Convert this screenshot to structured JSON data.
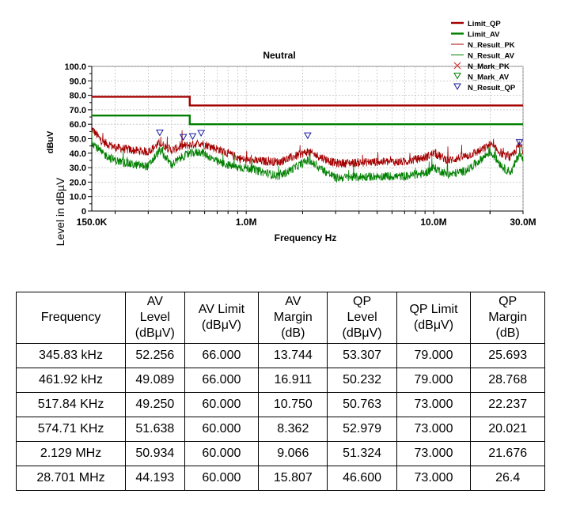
{
  "chart_data": {
    "type": "line",
    "title": "Neutral",
    "xlabel": "Frequency Hz",
    "ylabel": "Level in dBµV",
    "yunit": "dBuV",
    "x_scale": "log",
    "xlim": [
      150000,
      30000000
    ],
    "ylim": [
      0,
      100
    ],
    "x_ticks": [
      {
        "value": 150000,
        "label": "150.0K"
      },
      {
        "value": 1000000,
        "label": "1.0M"
      },
      {
        "value": 10000000,
        "label": "10.0M"
      },
      {
        "value": 30000000,
        "label": "30.0M"
      }
    ],
    "y_ticks": [
      "0",
      "10.0",
      "20.0",
      "30.0",
      "40.0",
      "50.0",
      "60.0",
      "70.0",
      "80.0",
      "90.0",
      "100.0"
    ],
    "grid": true,
    "legend_position": "top-right",
    "legend": [
      {
        "label": "Limit_QP",
        "color": "#a50000",
        "kind": "thick-line"
      },
      {
        "label": "Limit_AV",
        "color": "#008000",
        "kind": "thick-line"
      },
      {
        "label": "N_Result_PK",
        "color": "#a50000",
        "kind": "thin-line"
      },
      {
        "label": "N_Result_AV",
        "color": "#008000",
        "kind": "thin-line"
      },
      {
        "label": "N_Mark_PK",
        "color": "#d23232",
        "kind": "x-marker"
      },
      {
        "label": "N_Mark_AV",
        "color": "#008000",
        "kind": "down-triangle"
      },
      {
        "label": "N_Result_QP",
        "color": "#1a1aa0",
        "kind": "down-triangle"
      }
    ],
    "series": [
      {
        "name": "Limit_QP",
        "color": "#a50000",
        "x": [
          150000,
          500000,
          500000,
          30000000
        ],
        "y": [
          79,
          79,
          73,
          73
        ]
      },
      {
        "name": "Limit_AV",
        "color": "#008000",
        "x": [
          150000,
          500000,
          500000,
          30000000
        ],
        "y": [
          66,
          66,
          60,
          60
        ]
      },
      {
        "name": "N_Result_PK",
        "color": "#a50000",
        "x": [
          150000,
          170000,
          200000,
          250000,
          300000,
          345830,
          400000,
          461920,
          517840,
          574710,
          700000,
          900000,
          1000000,
          1500000,
          2129000,
          3000000,
          5000000,
          7000000,
          9000000,
          10000000,
          12000000,
          15000000,
          18000000,
          20000000,
          24000000,
          26000000,
          28701000,
          30000000
        ],
        "y": [
          57,
          48,
          44,
          42,
          41,
          47,
          42,
          45,
          46,
          47,
          43,
          37,
          35,
          34,
          41,
          33,
          34,
          34,
          37,
          40,
          35,
          38,
          42,
          46,
          38,
          37,
          46,
          42
        ]
      },
      {
        "name": "N_Result_AV",
        "color": "#008000",
        "x": [
          150000,
          170000,
          200000,
          250000,
          300000,
          345830,
          400000,
          461920,
          517840,
          574710,
          700000,
          900000,
          1000000,
          1500000,
          2129000,
          3000000,
          5000000,
          7000000,
          9000000,
          10000000,
          12000000,
          15000000,
          18000000,
          20000000,
          24000000,
          26000000,
          28701000,
          30000000
        ],
        "y": [
          48,
          40,
          35,
          32,
          31,
          42,
          32,
          38,
          40,
          41,
          34,
          30,
          30,
          24,
          35,
          23,
          24,
          24,
          26,
          30,
          25,
          28,
          36,
          41,
          29,
          27,
          40,
          35
        ]
      },
      {
        "name": "N_Result_QP",
        "color": "#1a1aa0",
        "marker": "down-triangle",
        "x": [
          345830,
          461920,
          517840,
          574710,
          2129000,
          28701000
        ],
        "y": [
          53.307,
          50.232,
          50.763,
          52.979,
          51.324,
          46.6
        ]
      }
    ]
  },
  "table": {
    "headers": [
      "Frequency",
      "AV\nLevel\n(dBμV)",
      "AV Limit\n(dBμV)",
      "AV\nMargin\n(dB)",
      "QP\nLevel\n(dBμV)",
      "QP Limit\n(dBμV)",
      "QP\nMargin\n(dB)"
    ],
    "rows": [
      [
        "345.83 kHz",
        "52.256",
        "66.000",
        "13.744",
        "53.307",
        "79.000",
        "25.693"
      ],
      [
        "461.92 kHz",
        "49.089",
        "66.000",
        "16.911",
        "50.232",
        "79.000",
        "28.768"
      ],
      [
        "517.84 KHz",
        "49.250",
        "60.000",
        "10.750",
        "50.763",
        "73.000",
        "22.237"
      ],
      [
        "574.71 KHz",
        "51.638",
        "60.000",
        "8.362",
        "52.979",
        "73.000",
        "20.021"
      ],
      [
        "2.129 MHz",
        "50.934",
        "60.000",
        "9.066",
        "51.324",
        "73.000",
        "21.676"
      ],
      [
        "28.701 MHz",
        "44.193",
        "60.000",
        "15.807",
        "46.600",
        "73.000",
        "26.4"
      ]
    ]
  }
}
